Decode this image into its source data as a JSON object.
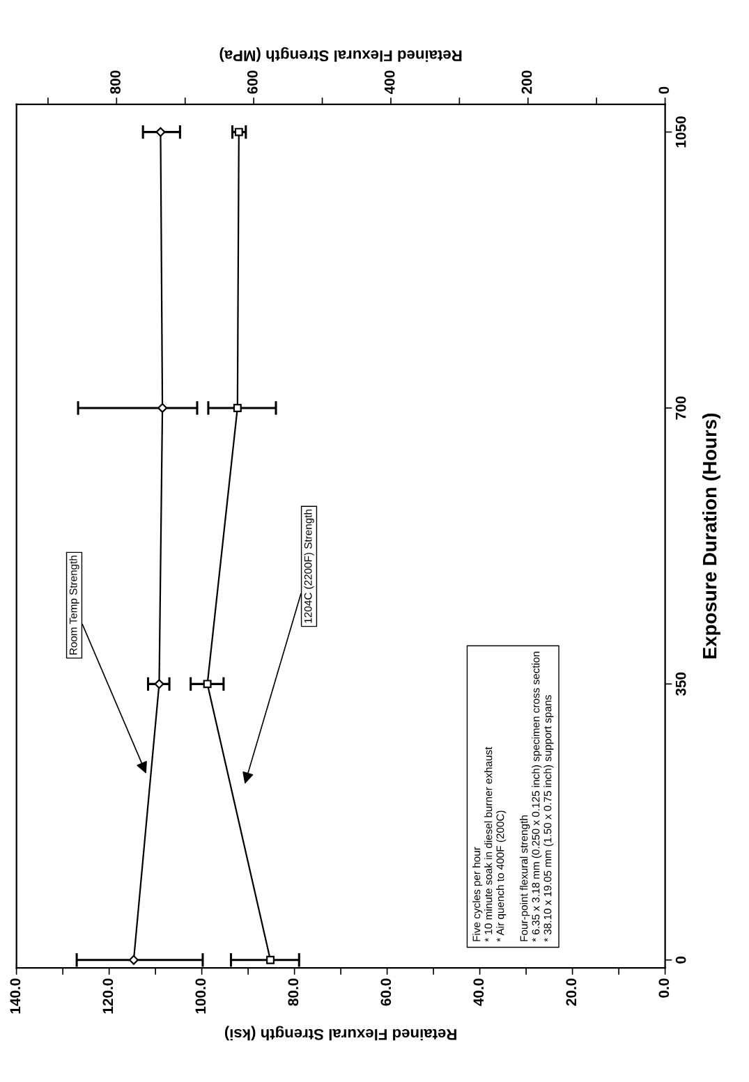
{
  "chart_data": {
    "type": "line",
    "xlabel": "Retained Flexural Strength (ksi)",
    "ylabel": "Exposure Duration (Hours)",
    "x2label": "Retained Flexural Strength (MPa)",
    "xlim": [
      140,
      0
    ],
    "xticks": [
      {
        "value": 0,
        "label": "0.0"
      },
      {
        "value": 10,
        "label": null
      },
      {
        "value": 20,
        "label": "20.0"
      },
      {
        "value": 30,
        "label": null
      },
      {
        "value": 40,
        "label": "40.0"
      },
      {
        "value": 50,
        "label": null
      },
      {
        "value": 60,
        "label": "60.0"
      },
      {
        "value": 70,
        "label": null
      },
      {
        "value": 80,
        "label": "80.0"
      },
      {
        "value": 90,
        "label": null
      },
      {
        "value": 100,
        "label": "100.0"
      },
      {
        "value": 110,
        "label": null
      },
      {
        "value": 120,
        "label": "120.0"
      },
      {
        "value": 130,
        "label": null
      },
      {
        "value": 140,
        "label": "140.0"
      }
    ],
    "x2lim": [
      946,
      0
    ],
    "x2ticks": [
      0,
      {
        "value": 100,
        "label": null
      },
      200,
      {
        "value": 300,
        "label": null
      },
      400,
      {
        "value": 500,
        "label": null
      },
      600,
      {
        "value": 700,
        "label": null
      },
      800,
      {
        "value": 900,
        "label": null
      }
    ],
    "ylim": [
      -10,
      1085
    ],
    "yticks": [
      0,
      350,
      700,
      1050
    ],
    "series": [
      {
        "color": "#000000",
        "marker": "diamond",
        "x": [
          114.7,
          109.2,
          108.5,
          108.9
        ],
        "values": [
          0,
          350,
          700,
          1050
        ],
        "xerrors": [
          [
            99.8,
            127.0
          ],
          [
            107.0,
            111.6
          ],
          [
            101.0,
            126.7
          ],
          [
            104.7,
            112.7
          ]
        ]
      },
      {
        "color": "#000000",
        "marker": "square",
        "x": [
          85.2,
          98.8,
          92.3,
          92.0
        ],
        "values": [
          0,
          350,
          700,
          1050
        ],
        "xerrors": [
          [
            79.0,
            93.7
          ],
          [
            95.3,
            102.4
          ],
          [
            84.0,
            98.6
          ],
          [
            90.5,
            93.4
          ]
        ]
      }
    ],
    "annotations": [
      "Room Temp Strength",
      "1204C (2200F) Strength",
      "Five cycles per hour\n* 10 minute soak in diesel burner exhaust\n* Air quench to 400F (200C)\n\nFour-point flexural strength\n* 6.35 x 3.18 mm (0.250 x 0.125 inch) specimen cross section\n* 38.10 x 19.05 mm (1.50 x 0.75 inch) support spans"
    ],
    "grid": false,
    "line_style": "solid"
  }
}
